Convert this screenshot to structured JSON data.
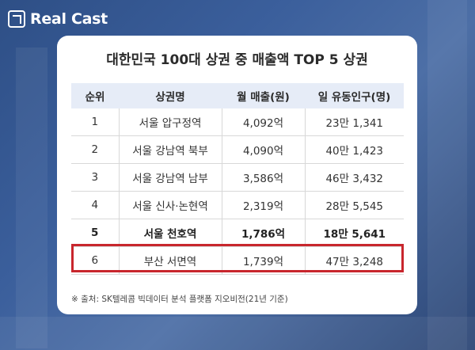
{
  "brand": {
    "name": "Real Cast"
  },
  "title": "대한민국 100대 상권 중 매출액 TOP 5 상권",
  "table": {
    "headers": [
      "순위",
      "상권명",
      "월 매출(원)",
      "일 유동인구(명)"
    ],
    "rows": [
      [
        "1",
        "서울 압구정역",
        "4,092억",
        "23만 1,341"
      ],
      [
        "2",
        "서울 강남역 북부",
        "4,090억",
        "40만 1,423"
      ],
      [
        "3",
        "서울 강남역 남부",
        "3,586억",
        "46만 3,432"
      ],
      [
        "4",
        "서울 신사·논현역",
        "2,319억",
        "28만 5,545"
      ],
      [
        "5",
        "서울 천호역",
        "1,786억",
        "18만 5,641"
      ],
      [
        "6",
        "부산 서면역",
        "1,739억",
        "47만 3,248"
      ]
    ],
    "highlight_row": 4
  },
  "footnote": "※ 출처: SK텔레콤 빅데이터 분석 플랫폼 지오비전(21년 기준)",
  "colors": {
    "highlight_border": "#c8262d",
    "header_bg": "#e6ecf7",
    "background": "#3b5f9c"
  }
}
